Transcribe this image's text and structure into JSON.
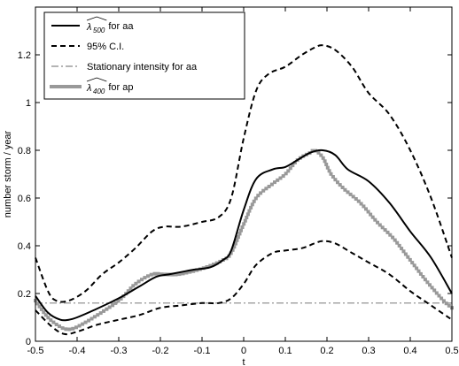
{
  "chart_data": {
    "type": "line",
    "xlabel": "t",
    "ylabel": "number storm / year",
    "xlim": [
      -0.5,
      0.5
    ],
    "ylim": [
      0,
      1.4
    ],
    "x_ticks": [
      -0.5,
      -0.4,
      -0.3,
      -0.2,
      -0.1,
      0,
      0.1,
      0.2,
      0.3,
      0.4,
      0.5
    ],
    "y_ticks": [
      0,
      0.2,
      0.4,
      0.6,
      0.8,
      1,
      1.2
    ],
    "x_tick_labels": [
      "-0.5",
      "-0.4",
      "-0.3",
      "-0.2",
      "-0.1",
      "0",
      "0.1",
      "0.2",
      "0.3",
      "0.4",
      "0.5"
    ],
    "y_tick_labels": [
      "0",
      "0.2",
      "0.4",
      "0.6",
      "0.8",
      "1",
      "1.2"
    ],
    "grid": false,
    "legend_position": "top-left",
    "series": [
      {
        "name": "λ̂500 for aa",
        "legend_symbol": "λ",
        "legend_subscript": "500",
        "legend_suffix": "for aa",
        "color": "#000000",
        "style": "solid",
        "x": [
          -0.5,
          -0.47,
          -0.44,
          -0.42,
          -0.4,
          -0.36,
          -0.3,
          -0.25,
          -0.21,
          -0.18,
          -0.15,
          -0.12,
          -0.08,
          -0.05,
          -0.03,
          0.0,
          0.03,
          0.07,
          0.1,
          0.13,
          0.16,
          0.19,
          0.22,
          0.25,
          0.3,
          0.35,
          0.4,
          0.45,
          0.5
        ],
        "y": [
          0.19,
          0.12,
          0.09,
          0.09,
          0.1,
          0.13,
          0.18,
          0.23,
          0.27,
          0.28,
          0.29,
          0.3,
          0.31,
          0.34,
          0.38,
          0.55,
          0.68,
          0.72,
          0.73,
          0.76,
          0.79,
          0.8,
          0.78,
          0.72,
          0.67,
          0.58,
          0.46,
          0.35,
          0.2
        ]
      },
      {
        "name": "95% C.I.",
        "legend_symbol": "",
        "legend_subscript": "",
        "legend_suffix": "95% C.I.",
        "color": "#000000",
        "style": "dashed",
        "x": [
          -0.5,
          -0.47,
          -0.45,
          -0.42,
          -0.38,
          -0.34,
          -0.3,
          -0.26,
          -0.22,
          -0.19,
          -0.15,
          -0.1,
          -0.06,
          -0.03,
          0.0,
          0.03,
          0.06,
          0.1,
          0.14,
          0.17,
          0.19,
          0.22,
          0.26,
          0.3,
          0.35,
          0.4,
          0.45,
          0.5
        ],
        "y": [
          0.35,
          0.21,
          0.17,
          0.17,
          0.21,
          0.28,
          0.33,
          0.39,
          0.46,
          0.48,
          0.48,
          0.5,
          0.52,
          0.6,
          0.85,
          1.05,
          1.12,
          1.15,
          1.2,
          1.23,
          1.24,
          1.22,
          1.15,
          1.04,
          0.95,
          0.8,
          0.6,
          0.35
        ]
      },
      {
        "name": "95% C.I. lower",
        "color": "#000000",
        "style": "dashed",
        "x": [
          -0.5,
          -0.46,
          -0.43,
          -0.4,
          -0.35,
          -0.3,
          -0.25,
          -0.2,
          -0.15,
          -0.1,
          -0.06,
          -0.03,
          0.0,
          0.03,
          0.07,
          0.1,
          0.14,
          0.17,
          0.19,
          0.22,
          0.26,
          0.3,
          0.35,
          0.4,
          0.45,
          0.5
        ],
        "y": [
          0.13,
          0.06,
          0.03,
          0.04,
          0.07,
          0.09,
          0.11,
          0.14,
          0.15,
          0.16,
          0.16,
          0.18,
          0.24,
          0.32,
          0.37,
          0.38,
          0.39,
          0.41,
          0.42,
          0.41,
          0.37,
          0.33,
          0.28,
          0.21,
          0.15,
          0.09
        ]
      },
      {
        "name": "Stationary intensity for aa",
        "legend_symbol": "",
        "legend_subscript": "",
        "legend_suffix": "Stationary intensity for aa",
        "color": "#888888",
        "style": "dashdot",
        "x": [
          -0.5,
          0.5
        ],
        "y": [
          0.16,
          0.16
        ]
      },
      {
        "name": "λ̂400 for ap",
        "legend_symbol": "λ",
        "legend_subscript": "400",
        "legend_suffix": "for ap",
        "color": "#999999",
        "style": "square-markers",
        "x": [
          -0.5,
          -0.47,
          -0.44,
          -0.42,
          -0.4,
          -0.36,
          -0.3,
          -0.26,
          -0.22,
          -0.19,
          -0.16,
          -0.13,
          -0.09,
          -0.05,
          -0.03,
          0.0,
          0.03,
          0.07,
          0.1,
          0.13,
          0.16,
          0.17,
          0.19,
          0.21,
          0.24,
          0.28,
          0.32,
          0.36,
          0.4,
          0.44,
          0.48,
          0.5
        ],
        "y": [
          0.17,
          0.1,
          0.06,
          0.05,
          0.06,
          0.1,
          0.17,
          0.24,
          0.28,
          0.28,
          0.28,
          0.29,
          0.31,
          0.34,
          0.37,
          0.49,
          0.6,
          0.66,
          0.7,
          0.76,
          0.79,
          0.8,
          0.77,
          0.7,
          0.64,
          0.58,
          0.5,
          0.43,
          0.34,
          0.25,
          0.17,
          0.14
        ]
      }
    ]
  },
  "legend": [
    {
      "symbol": "λ",
      "subscript": "500",
      "suffix": "for aa",
      "series_index": 0
    },
    {
      "symbol": "",
      "subscript": "",
      "suffix": "95% C.I.",
      "series_index": 1
    },
    {
      "symbol": "",
      "subscript": "",
      "suffix": "Stationary intensity for aa",
      "series_index": 3
    },
    {
      "symbol": "λ",
      "subscript": "400",
      "suffix": "for ap",
      "series_index": 4
    }
  ]
}
